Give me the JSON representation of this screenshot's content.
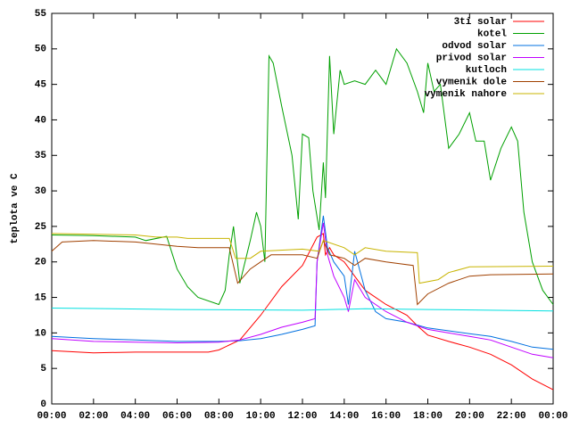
{
  "chart_data": {
    "type": "line",
    "ylabel": "teplota ve C",
    "xlim": [
      0,
      24
    ],
    "xticks": [
      {
        "value": 0,
        "label": "00:00"
      },
      {
        "value": 2,
        "label": "02:00"
      },
      {
        "value": 4,
        "label": "04:00"
      },
      {
        "value": 6,
        "label": "06:00"
      },
      {
        "value": 8,
        "label": "08:00"
      },
      {
        "value": 10,
        "label": "10:00"
      },
      {
        "value": 12,
        "label": "12:00"
      },
      {
        "value": 14,
        "label": "14:00"
      },
      {
        "value": 16,
        "label": "16:00"
      },
      {
        "value": 18,
        "label": "18:00"
      },
      {
        "value": 20,
        "label": "20:00"
      },
      {
        "value": 22,
        "label": "22:00"
      },
      {
        "value": 24,
        "label": "00:00"
      }
    ],
    "ylim": [
      0,
      55
    ],
    "yticks": [
      0,
      5,
      10,
      15,
      20,
      25,
      30,
      35,
      40,
      45,
      50,
      55
    ],
    "grid": false,
    "legend": "top-right",
    "series": [
      {
        "name": "3ti solar",
        "color": "#ff0000",
        "x": [
          0,
          2,
          4,
          6,
          7.5,
          8,
          9,
          10,
          11,
          12,
          12.7,
          13,
          13.1,
          13.3,
          13.5,
          14,
          14.5,
          15,
          16,
          17,
          17.5,
          18,
          19,
          20,
          21,
          22,
          23,
          24
        ],
        "values": [
          7.5,
          7.2,
          7.3,
          7.3,
          7.3,
          7.6,
          9,
          12.5,
          16.5,
          19.5,
          23.5,
          24,
          21,
          22,
          21,
          20,
          18,
          16,
          14,
          12.5,
          11,
          9.7,
          8.8,
          8,
          7,
          5.5,
          3.5,
          2
        ]
      },
      {
        "name": "kotel",
        "color": "#00a000",
        "x": [
          0,
          2,
          4,
          4.5,
          5.5,
          6,
          6.5,
          7,
          8,
          8.3,
          8.5,
          8.7,
          9,
          9.5,
          9.8,
          10,
          10.2,
          10.4,
          10.6,
          11,
          11.5,
          11.8,
          12,
          12.3,
          12.5,
          12.8,
          13,
          13.1,
          13.3,
          13.5,
          13.8,
          14,
          14.5,
          15,
          15.5,
          16,
          16.5,
          17,
          17.5,
          17.8,
          18,
          18.3,
          18.6,
          19,
          19.5,
          20,
          20.3,
          20.7,
          21,
          21.5,
          22,
          22.3,
          22.6,
          23,
          23.5,
          24
        ],
        "values": [
          23.8,
          23.7,
          23.5,
          23,
          23.6,
          19,
          16.5,
          15,
          14,
          16,
          21,
          25,
          17,
          23,
          27,
          25,
          20,
          49,
          48,
          42,
          35,
          26,
          38,
          37.5,
          30,
          24.5,
          34,
          29,
          49,
          38,
          47,
          45,
          45.5,
          45,
          47,
          45,
          50,
          48,
          44,
          41,
          48,
          44,
          45,
          36,
          38,
          41,
          37,
          37,
          31.5,
          36,
          39,
          37,
          27,
          20,
          16,
          14
        ]
      },
      {
        "name": "odvod solar",
        "color": "#0070e0",
        "x": [
          0,
          2,
          4,
          6,
          8,
          9,
          10,
          11,
          12,
          12.6,
          12.7,
          13,
          13.2,
          13.5,
          14,
          14.2,
          14.5,
          15,
          15.5,
          16,
          17,
          18,
          19,
          20,
          21,
          22,
          23,
          24
        ],
        "values": [
          9.5,
          9.2,
          9,
          8.8,
          8.8,
          8.9,
          9.2,
          9.8,
          10.5,
          11,
          20,
          26.5,
          22,
          20,
          18,
          14,
          21.5,
          16,
          13,
          12,
          11.5,
          10.7,
          10.3,
          9.9,
          9.5,
          8.8,
          8,
          7.7
        ]
      },
      {
        "name": "privod solar",
        "color": "#c000ff",
        "x": [
          0,
          2,
          4,
          6,
          8,
          9,
          10,
          11,
          12,
          12.6,
          12.7,
          13,
          13.2,
          13.5,
          14,
          14.2,
          14.5,
          15,
          16,
          17,
          18,
          19,
          20,
          21,
          22,
          23,
          24
        ],
        "values": [
          9.2,
          8.8,
          8.7,
          8.6,
          8.7,
          9,
          9.8,
          10.8,
          11.5,
          12,
          20,
          25.5,
          21,
          18,
          15,
          13,
          17.5,
          15,
          13,
          11.5,
          10.5,
          10,
          9.5,
          9,
          8,
          7,
          6.5
        ]
      },
      {
        "name": "kutloch",
        "color": "#00e0e0",
        "x": [
          0,
          6,
          12,
          15,
          18,
          24
        ],
        "values": [
          13.5,
          13.3,
          13.2,
          13.4,
          13.3,
          13.1
        ]
      },
      {
        "name": "vymenik dole",
        "color": "#a04000",
        "x": [
          0,
          0.5,
          2,
          4,
          6,
          7,
          8.5,
          8.9,
          9.5,
          10,
          10.5,
          12,
          12.7,
          13,
          13.3,
          14,
          14.5,
          15,
          16,
          17.3,
          17.5,
          18,
          19,
          20,
          21,
          24
        ],
        "values": [
          21.5,
          22.8,
          23,
          22.8,
          22.2,
          22,
          22,
          17,
          19,
          20,
          21,
          21,
          20.5,
          23,
          21,
          20.5,
          19.5,
          20.5,
          20,
          19.5,
          14,
          15.5,
          17,
          18,
          18.2,
          18.3
        ]
      },
      {
        "name": "vymenik nahore",
        "color": "#c8b400",
        "x": [
          0,
          4,
          5,
          6,
          6.5,
          8.5,
          8.8,
          9.5,
          10,
          12,
          12.8,
          13,
          14,
          14.5,
          15,
          16,
          17.5,
          17.6,
          18.5,
          19,
          20,
          24
        ],
        "values": [
          24,
          23.8,
          23.5,
          23.5,
          23.3,
          23.3,
          20.5,
          20.5,
          21.5,
          21.8,
          21.5,
          23,
          22,
          21,
          22,
          21.5,
          21.3,
          17,
          17.5,
          18.5,
          19.3,
          19.4
        ]
      }
    ]
  }
}
